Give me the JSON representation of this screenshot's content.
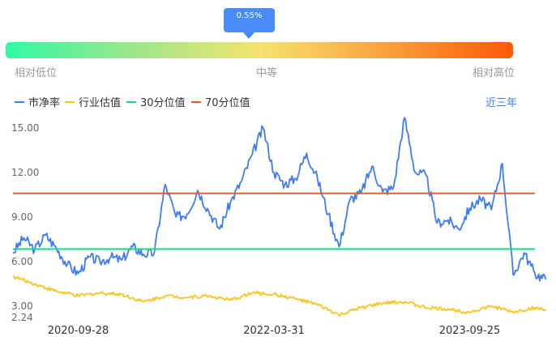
{
  "tooltip": {
    "text": "0.55%"
  },
  "gauge": {
    "low_label": "相对低位",
    "mid_label": "中等",
    "high_label": "相对高位",
    "position_percent": 0.55
  },
  "legend": [
    {
      "label": "市净率",
      "color": "#3d7cf4"
    },
    {
      "label": "行业估值",
      "color": "#f7c51e"
    },
    {
      "label": "30分位值",
      "color": "#1ed688"
    },
    {
      "label": "70分位值",
      "color": "#ef5a20"
    }
  ],
  "period_button": {
    "label": "近三年"
  },
  "chart_data": {
    "type": "line",
    "y_ticks": [
      "15.00",
      "12.00",
      "9.00",
      "6.00",
      "3.00",
      "2.24"
    ],
    "y_tick_values": [
      15,
      12,
      9,
      6,
      3,
      2.24
    ],
    "ylim": [
      2.24,
      15.0
    ],
    "x_tick_labels": [
      "2020-09-28",
      "2022-03-31",
      "2023-09-25"
    ],
    "x_range": [
      "2020-03",
      "2024-03"
    ],
    "grid": false,
    "series": [
      {
        "name": "市净率",
        "color": "#3d7cf4",
        "points": [
          [
            "2020-03",
            6.6
          ],
          [
            "2020-04",
            7.6
          ],
          [
            "2020-05",
            6.8
          ],
          [
            "2020-06",
            7.8
          ],
          [
            "2020-07",
            6.9
          ],
          [
            "2020-08",
            5.8
          ],
          [
            "2020-09",
            5.2
          ],
          [
            "2020-10",
            6.3
          ],
          [
            "2020-11",
            6.0
          ],
          [
            "2020-12",
            6.3
          ],
          [
            "2021-01",
            6.1
          ],
          [
            "2021-02",
            7.0
          ],
          [
            "2021-03",
            6.5
          ],
          [
            "2021-04",
            6.6
          ],
          [
            "2021-05",
            11.2
          ],
          [
            "2021-06",
            9.0
          ],
          [
            "2021-07",
            9.2
          ],
          [
            "2021-08",
            10.8
          ],
          [
            "2021-09",
            9.4
          ],
          [
            "2021-10",
            8.2
          ],
          [
            "2021-11",
            10.0
          ],
          [
            "2021-12",
            11.4
          ],
          [
            "2022-01",
            13.2
          ],
          [
            "2022-02",
            15.0
          ],
          [
            "2022-03",
            12.0
          ],
          [
            "2022-04",
            11.2
          ],
          [
            "2022-05",
            11.6
          ],
          [
            "2022-06",
            13.3
          ],
          [
            "2022-07",
            11.6
          ],
          [
            "2022-08",
            9.2
          ],
          [
            "2022-09",
            7.0
          ],
          [
            "2022-10",
            10.2
          ],
          [
            "2022-11",
            10.6
          ],
          [
            "2022-12",
            12.4
          ],
          [
            "2023-01",
            10.7
          ],
          [
            "2023-02",
            11.0
          ],
          [
            "2023-03",
            15.7
          ],
          [
            "2023-04",
            12.0
          ],
          [
            "2023-05",
            11.8
          ],
          [
            "2023-06",
            8.6
          ],
          [
            "2023-07",
            8.8
          ],
          [
            "2023-08",
            8.2
          ],
          [
            "2023-09",
            9.6
          ],
          [
            "2023-10",
            10.2
          ],
          [
            "2023-11",
            9.5
          ],
          [
            "2023-12",
            12.6
          ],
          [
            "2024-01",
            5.1
          ],
          [
            "2024-02",
            6.6
          ],
          [
            "2024-03",
            5.2
          ],
          [
            "2024-04",
            4.8
          ]
        ]
      },
      {
        "name": "行业估值",
        "color": "#f7c51e",
        "points": [
          [
            "2020-03",
            5.0
          ],
          [
            "2020-05",
            4.5
          ],
          [
            "2020-07",
            4.0
          ],
          [
            "2020-09",
            3.7
          ],
          [
            "2020-11",
            3.9
          ],
          [
            "2021-01",
            3.8
          ],
          [
            "2021-03",
            3.3
          ],
          [
            "2021-05",
            3.7
          ],
          [
            "2021-07",
            3.6
          ],
          [
            "2021-09",
            3.7
          ],
          [
            "2021-11",
            3.4
          ],
          [
            "2022-01",
            3.9
          ],
          [
            "2022-03",
            3.8
          ],
          [
            "2022-05",
            3.5
          ],
          [
            "2022-07",
            3.1
          ],
          [
            "2022-09",
            2.4
          ],
          [
            "2022-11",
            2.9
          ],
          [
            "2023-01",
            3.2
          ],
          [
            "2023-03",
            3.3
          ],
          [
            "2023-05",
            2.9
          ],
          [
            "2023-07",
            2.8
          ],
          [
            "2023-09",
            2.6
          ],
          [
            "2023-11",
            3.0
          ],
          [
            "2024-01",
            2.6
          ],
          [
            "2024-03",
            2.9
          ],
          [
            "2024-04",
            2.7
          ]
        ]
      },
      {
        "name": "30分位值",
        "color": "#1ed688",
        "constant": 6.85
      },
      {
        "name": "70分位值",
        "color": "#ef5a20",
        "constant": 10.6
      }
    ]
  }
}
